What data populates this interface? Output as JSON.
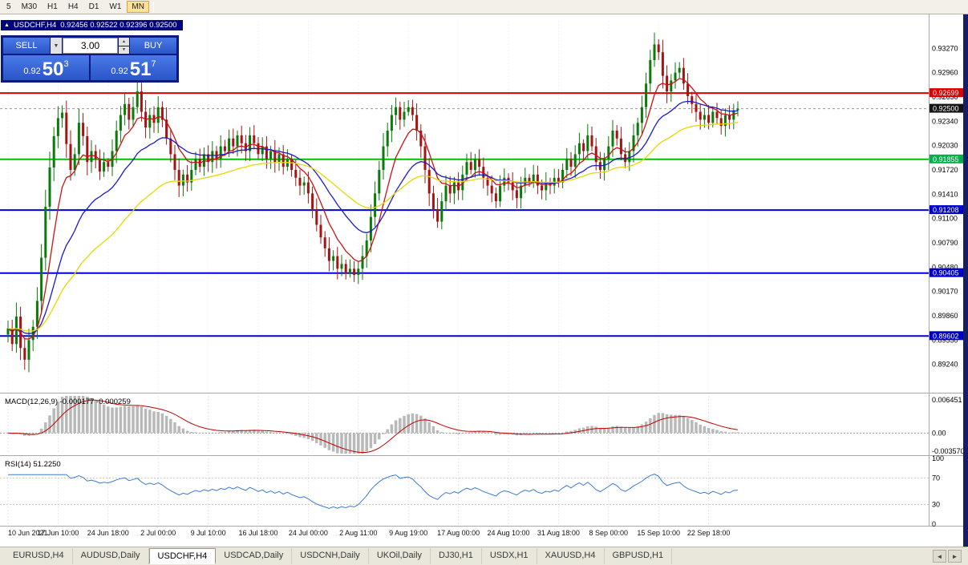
{
  "toolbar": {
    "timeframes": [
      "5",
      "M30",
      "H1",
      "H4",
      "D1",
      "W1",
      "MN"
    ],
    "active": "MN"
  },
  "header": {
    "symbol": "USDCHF,H4",
    "ohlc": "0.92456 0.92522 0.92396 0.92500"
  },
  "trade_panel": {
    "sell_label": "SELL",
    "buy_label": "BUY",
    "volume": "3.00",
    "sell_price": {
      "small": "0.92",
      "big": "50",
      "sup": "3"
    },
    "buy_price": {
      "small": "0.92",
      "big": "51",
      "sup": "7"
    }
  },
  "price_axis": {
    "ticks": [
      "0.93270",
      "0.92960",
      "0.92650",
      "0.92340",
      "0.92030",
      "0.91720",
      "0.91410",
      "0.91100",
      "0.90790",
      "0.90480",
      "0.90170",
      "0.89860",
      "0.89550",
      "0.89240"
    ],
    "badges": [
      {
        "label": "0.92699",
        "color": "#dd0000"
      },
      {
        "label": "0.92500",
        "color": "#141414"
      },
      {
        "label": "0.91855",
        "color": "#00b04a"
      },
      {
        "label": "0.91208",
        "color": "#0000cc"
      },
      {
        "label": "0.90405",
        "color": "#0000cc"
      },
      {
        "label": "0.89602",
        "color": "#0000cc"
      }
    ]
  },
  "indicators": {
    "macd": {
      "label": "MACD(12,26,9) -0.000177 -0.000259",
      "axis": [
        "0.006451",
        "0.00",
        "-0.003570"
      ]
    },
    "rsi": {
      "label": "RSI(14) 51.2250",
      "axis": [
        "100",
        "70",
        "30",
        "0"
      ]
    }
  },
  "time_axis": [
    "10 Jun 2021",
    "17 Jun 10:00",
    "24 Jun 18:00",
    "2 Jul 00:00",
    "9 Jul 10:00",
    "16 Jul 18:00",
    "24 Jul 00:00",
    "2 Aug 11:00",
    "9 Aug 19:00",
    "17 Aug 00:00",
    "24 Aug 10:00",
    "31 Aug 18:00",
    "8 Sep 00:00",
    "15 Sep 10:00",
    "22 Sep 18:00"
  ],
  "tabs": {
    "items": [
      {
        "label": "EURUSD,H4"
      },
      {
        "label": "AUDUSD,Daily"
      },
      {
        "label": "USDCHF,H4",
        "active": true
      },
      {
        "label": "USDCAD,Daily"
      },
      {
        "label": "USDCNH,Daily"
      },
      {
        "label": "UKOil,Daily"
      },
      {
        "label": "DJ30,H1"
      },
      {
        "label": "USDX,H1"
      },
      {
        "label": "XAUUSD,H4"
      },
      {
        "label": "GBPUSD,H1"
      }
    ]
  },
  "chart_data": {
    "type": "candlestick",
    "symbol": "USDCHF",
    "timeframe": "H4",
    "title": "USDCHF,H4",
    "price_range": [
      0.889,
      0.9362
    ],
    "bars_per_time_label": 12,
    "closes": [
      0.897,
      0.895,
      0.8985,
      0.8945,
      0.893,
      0.8955,
      0.8972,
      0.9005,
      0.906,
      0.9125,
      0.9175,
      0.9215,
      0.9238,
      0.9245,
      0.9205,
      0.9172,
      0.9192,
      0.9232,
      0.9215,
      0.9182,
      0.9196,
      0.9186,
      0.917,
      0.9182,
      0.9176,
      0.9196,
      0.9222,
      0.9242,
      0.9256,
      0.9236,
      0.9252,
      0.9272,
      0.9246,
      0.9226,
      0.9242,
      0.9232,
      0.9252,
      0.9236,
      0.9212,
      0.9192,
      0.9172,
      0.9152,
      0.9166,
      0.9156,
      0.9172,
      0.9186,
      0.9176,
      0.9192,
      0.9182,
      0.9196,
      0.9186,
      0.9202,
      0.9196,
      0.9212,
      0.9202,
      0.9216,
      0.9206,
      0.9196,
      0.9216,
      0.9206,
      0.9192,
      0.9202,
      0.9186,
      0.9196,
      0.9182,
      0.9192,
      0.9176,
      0.9186,
      0.9172,
      0.9162,
      0.9152,
      0.9156,
      0.9142,
      0.9122,
      0.9102,
      0.9086,
      0.9072,
      0.9056,
      0.9062,
      0.9046,
      0.9052,
      0.904,
      0.9046,
      0.9038,
      0.9046,
      0.9062,
      0.9082,
      0.9112,
      0.9142,
      0.9172,
      0.9202,
      0.9222,
      0.9242,
      0.9252,
      0.9236,
      0.9246,
      0.9252,
      0.9242,
      0.9222,
      0.9202,
      0.9172,
      0.9142,
      0.9122,
      0.9106,
      0.9132,
      0.9152,
      0.9142,
      0.9156,
      0.9146,
      0.9166,
      0.9182,
      0.9172,
      0.9186,
      0.9176,
      0.9162,
      0.9152,
      0.9142,
      0.9132,
      0.9152,
      0.9162,
      0.9156,
      0.9146,
      0.9136,
      0.9152,
      0.9162,
      0.9156,
      0.9166,
      0.9152,
      0.9146,
      0.9156,
      0.9152,
      0.9162,
      0.9156,
      0.9172,
      0.9186,
      0.9176,
      0.9192,
      0.9206,
      0.9196,
      0.9216,
      0.9202,
      0.9182,
      0.9172,
      0.9186,
      0.9202,
      0.9222,
      0.9212,
      0.9192,
      0.9182,
      0.9196,
      0.9216,
      0.9232,
      0.9252,
      0.9282,
      0.9312,
      0.9332,
      0.9322,
      0.9292,
      0.9272,
      0.9286,
      0.9296,
      0.9302,
      0.9282,
      0.9266,
      0.9256,
      0.9246,
      0.9236,
      0.9242,
      0.9232,
      0.9246,
      0.9238,
      0.9228,
      0.9242,
      0.9236,
      0.9248,
      0.925
    ],
    "hlines": [
      {
        "price": 0.92699,
        "color": "#dd0000",
        "width": 2
      },
      {
        "price": 0.925,
        "color": "#999999",
        "width": 1,
        "dash": true
      },
      {
        "price": 0.91855,
        "color": "#00c000",
        "width": 2
      },
      {
        "price": 0.91208,
        "color": "#0000dd",
        "width": 2
      },
      {
        "price": 0.90405,
        "color": "#0000dd",
        "width": 2
      },
      {
        "price": 0.89602,
        "color": "#0000dd",
        "width": 2
      }
    ],
    "ma": [
      {
        "period": 8,
        "color": "#cc1111"
      },
      {
        "period": 21,
        "color": "#1a1acc"
      },
      {
        "period": 45,
        "color": "#e6d800"
      }
    ],
    "macd": {
      "fast": 12,
      "slow": 26,
      "signal_period": 9,
      "range": [
        -0.00357,
        0.006451
      ],
      "main": -0.000177,
      "signal": -0.000259
    },
    "rsi": {
      "period": 14,
      "current": 51.225
    }
  }
}
